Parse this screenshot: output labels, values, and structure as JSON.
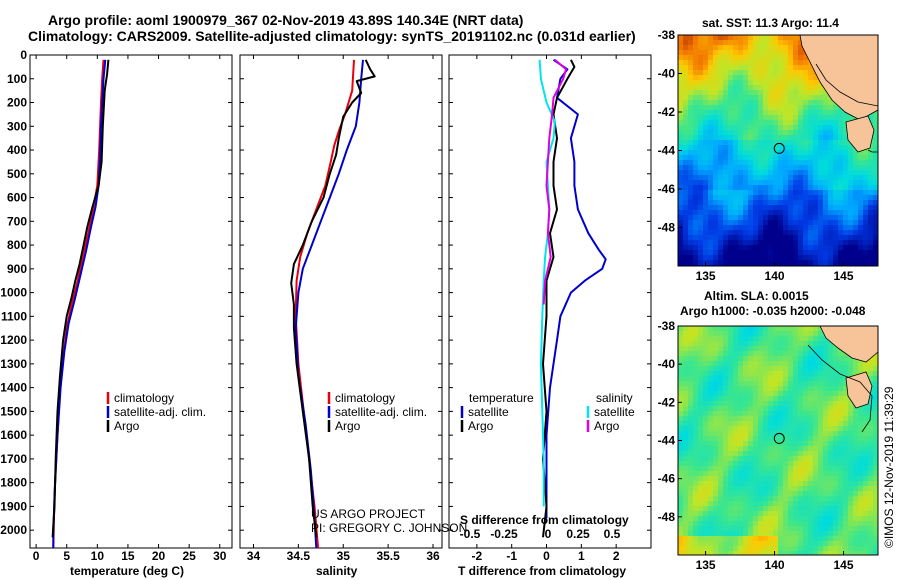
{
  "titles": {
    "line1": "Argo profile: aoml 1900979_367 02-Nov-2019 43.89S 140.34E (NRT data)",
    "line2": "Climatology: CARS2009. Satellite-adjusted climatology: synTS_20191102.nc (0.031d earlier)"
  },
  "credits": {
    "project": "US ARGO PROJECT",
    "pi": "PI: GREGORY C. JOHNSON",
    "imos": "©IMOS 12-Nov-2019 11:39:29"
  },
  "colors": {
    "climatology": "#e8000b",
    "satellite": "#0000cc",
    "argo": "#000000",
    "t_diff": "#0000cc",
    "s_diff": "#00e5ee",
    "argo_s_diff": "#e000e0",
    "land": "#f7c49a"
  },
  "chart_data": [
    {
      "type": "line",
      "panel": "temperature",
      "xlabel": "temperature (deg C)",
      "xlim": [
        -1,
        32
      ],
      "xticks": [
        0,
        5,
        10,
        15,
        20,
        25,
        30
      ],
      "ylim": [
        2075,
        0
      ],
      "yticks": [
        0,
        100,
        200,
        300,
        400,
        500,
        600,
        700,
        800,
        900,
        1000,
        1100,
        1200,
        1300,
        1400,
        1500,
        1600,
        1700,
        1800,
        1900,
        2000
      ],
      "legend": [
        "climatology",
        "satellite-adj. clim.",
        "Argo"
      ],
      "series": [
        {
          "name": "climatology",
          "points": [
            [
              11.0,
              20
            ],
            [
              10.8,
              100
            ],
            [
              10.6,
              200
            ],
            [
              10.3,
              400
            ],
            [
              10.0,
              550
            ],
            [
              9.3,
              650
            ],
            [
              8.5,
              750
            ],
            [
              7.6,
              850
            ],
            [
              6.8,
              950
            ],
            [
              5.8,
              1050
            ],
            [
              5.0,
              1150
            ],
            [
              4.3,
              1300
            ],
            [
              3.8,
              1450
            ],
            [
              3.4,
              1650
            ],
            [
              3.0,
              1850
            ],
            [
              2.8,
              2075
            ]
          ]
        },
        {
          "name": "satellite-adj. clim.",
          "points": [
            [
              11.3,
              20
            ],
            [
              11.0,
              100
            ],
            [
              10.6,
              300
            ],
            [
              10.4,
              450
            ],
            [
              10.2,
              550
            ],
            [
              9.7,
              640
            ],
            [
              9.0,
              720
            ],
            [
              8.2,
              820
            ],
            [
              7.3,
              920
            ],
            [
              6.3,
              1030
            ],
            [
              5.3,
              1130
            ],
            [
              4.6,
              1250
            ],
            [
              4.0,
              1400
            ],
            [
              3.5,
              1600
            ],
            [
              3.1,
              1800
            ],
            [
              2.8,
              2000
            ],
            [
              2.8,
              2075
            ]
          ]
        },
        {
          "name": "Argo",
          "points": [
            [
              11.8,
              20
            ],
            [
              11.6,
              80
            ],
            [
              11.2,
              150
            ],
            [
              10.9,
              300
            ],
            [
              10.7,
              450
            ],
            [
              10.2,
              550
            ],
            [
              9.2,
              640
            ],
            [
              8.4,
              720
            ],
            [
              7.6,
              820
            ],
            [
              7.1,
              880
            ],
            [
              6.4,
              950
            ],
            [
              5.8,
              1020
            ],
            [
              5.0,
              1100
            ],
            [
              4.4,
              1200
            ],
            [
              3.9,
              1350
            ],
            [
              3.5,
              1500
            ],
            [
              3.2,
              1700
            ],
            [
              3.0,
              1900
            ],
            [
              2.7,
              2030
            ]
          ]
        }
      ]
    },
    {
      "type": "line",
      "panel": "salinity",
      "xlabel": "salinity",
      "xlim": [
        33.85,
        36.1
      ],
      "xticks": [
        34,
        34.5,
        35,
        35.5,
        36
      ],
      "ylim": [
        2075,
        0
      ],
      "legend": [
        "climatology",
        "satellite-adj. clim.",
        "Argo"
      ],
      "series": [
        {
          "name": "climatology",
          "points": [
            [
              35.12,
              20
            ],
            [
              35.1,
              150
            ],
            [
              35.02,
              250
            ],
            [
              34.95,
              320
            ],
            [
              34.9,
              380
            ],
            [
              34.86,
              450
            ],
            [
              34.8,
              550
            ],
            [
              34.7,
              650
            ],
            [
              34.6,
              750
            ],
            [
              34.52,
              850
            ],
            [
              34.48,
              950
            ],
            [
              34.47,
              1100
            ],
            [
              34.5,
              1300
            ],
            [
              34.56,
              1500
            ],
            [
              34.62,
              1700
            ],
            [
              34.68,
              1900
            ],
            [
              34.72,
              2075
            ]
          ]
        },
        {
          "name": "satellite-adj. clim.",
          "points": [
            [
              35.22,
              20
            ],
            [
              35.2,
              100
            ],
            [
              35.18,
              200
            ],
            [
              35.14,
              300
            ],
            [
              35.04,
              400
            ],
            [
              34.95,
              500
            ],
            [
              34.85,
              600
            ],
            [
              34.75,
              700
            ],
            [
              34.65,
              800
            ],
            [
              34.55,
              900
            ],
            [
              34.5,
              1000
            ],
            [
              34.47,
              1150
            ],
            [
              34.5,
              1350
            ],
            [
              34.58,
              1550
            ],
            [
              34.64,
              1750
            ],
            [
              34.68,
              1950
            ],
            [
              34.7,
              2075
            ]
          ]
        },
        {
          "name": "Argo",
          "points": [
            [
              35.25,
              20
            ],
            [
              35.3,
              60
            ],
            [
              35.35,
              90
            ],
            [
              35.15,
              110
            ],
            [
              35.2,
              160
            ],
            [
              35.1,
              200
            ],
            [
              35.0,
              260
            ],
            [
              34.95,
              350
            ],
            [
              34.92,
              420
            ],
            [
              34.85,
              500
            ],
            [
              34.78,
              600
            ],
            [
              34.65,
              700
            ],
            [
              34.55,
              800
            ],
            [
              34.45,
              880
            ],
            [
              34.42,
              960
            ],
            [
              34.45,
              1050
            ],
            [
              34.45,
              1150
            ],
            [
              34.48,
              1300
            ],
            [
              34.55,
              1500
            ],
            [
              34.62,
              1700
            ],
            [
              34.66,
              1900
            ],
            [
              34.7,
              2030
            ]
          ]
        }
      ]
    },
    {
      "type": "line",
      "panel": "differences",
      "xlabel": "T difference from climatology",
      "xlim": [
        -2.8,
        3.0
      ],
      "xticks": [
        -2,
        -1,
        0,
        1,
        2
      ],
      "xlabel_top": "S difference from climatology",
      "xticks_top_labels": [
        "-0.5",
        "-0.25",
        "0",
        "0.25",
        "0.5"
      ],
      "ylim": [
        2075,
        0
      ],
      "legend_left_title": "temperature",
      "legend_left": [
        "satellite",
        "Argo"
      ],
      "legend_right_title": "salinity",
      "legend_right": [
        "satellite",
        "Argo"
      ],
      "series": [
        {
          "name": "T satellite",
          "points": [
            [
              0.2,
              20
            ],
            [
              0.6,
              60
            ],
            [
              0.4,
              100
            ],
            [
              0.3,
              180
            ],
            [
              0.9,
              250
            ],
            [
              0.7,
              350
            ],
            [
              0.8,
              450
            ],
            [
              0.8,
              550
            ],
            [
              0.9,
              650
            ],
            [
              1.2,
              750
            ],
            [
              1.5,
              820
            ],
            [
              1.7,
              860
            ],
            [
              1.6,
              900
            ],
            [
              1.1,
              950
            ],
            [
              0.7,
              1000
            ],
            [
              0.4,
              1100
            ],
            [
              0.3,
              1200
            ],
            [
              0.1,
              1400
            ],
            [
              0.0,
              1600
            ],
            [
              0.0,
              1800
            ],
            [
              0.0,
              1950
            ]
          ]
        },
        {
          "name": "T Argo",
          "points": [
            [
              0.7,
              20
            ],
            [
              0.8,
              50
            ],
            [
              0.6,
              100
            ],
            [
              0.3,
              180
            ],
            [
              0.2,
              250
            ],
            [
              0.3,
              350
            ],
            [
              0.2,
              450
            ],
            [
              0.2,
              550
            ],
            [
              0.3,
              650
            ],
            [
              0.1,
              750
            ],
            [
              0.2,
              850
            ],
            [
              0.0,
              950
            ],
            [
              0.0,
              1100
            ],
            [
              -0.1,
              1300
            ],
            [
              0.0,
              1500
            ],
            [
              -0.1,
              1700
            ],
            [
              0.0,
              1900
            ],
            [
              -0.1,
              2030
            ]
          ]
        },
        {
          "name": "S satellite",
          "points": [
            [
              -0.05,
              20
            ],
            [
              -0.04,
              100
            ],
            [
              0.0,
              200
            ],
            [
              0.06,
              280
            ],
            [
              0.05,
              350
            ],
            [
              0.0,
              450
            ],
            [
              0.01,
              550
            ],
            [
              0.02,
              650
            ],
            [
              0.01,
              750
            ],
            [
              -0.01,
              850
            ],
            [
              -0.02,
              950
            ],
            [
              -0.03,
              1100
            ],
            [
              -0.04,
              1300
            ],
            [
              -0.03,
              1500
            ],
            [
              -0.02,
              1700
            ],
            [
              -0.02,
              1900
            ]
          ]
        },
        {
          "name": "S Argo",
          "points": [
            [
              0.06,
              20
            ],
            [
              0.14,
              60
            ],
            [
              0.12,
              100
            ],
            [
              0.05,
              180
            ],
            [
              0.04,
              250
            ],
            [
              0.02,
              350
            ],
            [
              0.01,
              450
            ],
            [
              0.0,
              550
            ],
            [
              0.02,
              650
            ],
            [
              0.01,
              750
            ],
            [
              0.03,
              850
            ],
            [
              -0.01,
              950
            ],
            [
              -0.02,
              1050
            ]
          ]
        }
      ]
    },
    {
      "type": "heatmap",
      "panel": "sst-map",
      "title": "sat. SST: 11.3 Argo: 11.4",
      "xticks": [
        135,
        140,
        145
      ],
      "yticks": [
        -48,
        -46,
        -44,
        -42,
        -40,
        -38
      ],
      "xlim": [
        133,
        147.5
      ],
      "ylim": [
        -50,
        -38
      ],
      "marker": [
        140.34,
        -43.89
      ]
    },
    {
      "type": "heatmap",
      "panel": "sla-map",
      "title": "Altim. SLA: 0.0015",
      "subtitle": "Argo h1000: -0.035 h2000: -0.048",
      "xticks": [
        135,
        140,
        145
      ],
      "yticks": [
        -48,
        -46,
        -44,
        -42,
        -40,
        -38
      ],
      "xlim": [
        133,
        147.5
      ],
      "ylim": [
        -50,
        -38
      ],
      "marker": [
        140.34,
        -43.89
      ]
    }
  ]
}
